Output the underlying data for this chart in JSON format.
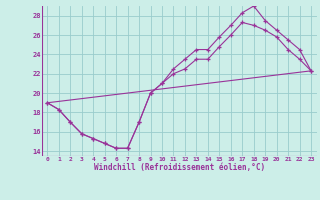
{
  "xlabel": "Windchill (Refroidissement éolien,°C)",
  "bg_color": "#cceee8",
  "grid_color": "#99cccc",
  "line_color": "#993399",
  "xlim_min": -0.5,
  "xlim_max": 23.5,
  "ylim_min": 13.5,
  "ylim_max": 29.0,
  "xticks": [
    0,
    1,
    2,
    3,
    4,
    5,
    6,
    7,
    8,
    9,
    10,
    11,
    12,
    13,
    14,
    15,
    16,
    17,
    18,
    19,
    20,
    21,
    22,
    23
  ],
  "yticks": [
    14,
    16,
    18,
    20,
    22,
    24,
    26,
    28
  ],
  "line1_x": [
    0,
    1,
    2,
    3,
    4,
    5,
    6,
    7,
    8,
    9,
    10,
    11,
    12,
    13,
    14,
    15,
    16,
    17,
    18,
    19,
    20,
    21,
    22,
    23
  ],
  "line1_y": [
    19.0,
    18.3,
    17.0,
    15.8,
    15.3,
    14.8,
    14.3,
    14.3,
    17.0,
    20.0,
    21.0,
    22.5,
    23.5,
    24.5,
    24.5,
    25.8,
    27.0,
    28.3,
    29.0,
    27.5,
    26.5,
    25.5,
    24.5,
    22.3
  ],
  "line2_x": [
    0,
    1,
    2,
    3,
    4,
    5,
    6,
    7,
    8,
    9,
    10,
    11,
    12,
    13,
    14,
    15,
    16,
    17,
    18,
    19,
    20,
    21,
    22,
    23
  ],
  "line2_y": [
    19.0,
    18.3,
    17.0,
    15.8,
    15.3,
    14.8,
    14.3,
    14.3,
    17.0,
    20.0,
    21.0,
    22.0,
    22.5,
    23.5,
    23.5,
    24.8,
    26.0,
    27.3,
    27.0,
    26.5,
    25.8,
    24.5,
    23.5,
    22.3
  ],
  "line3_x": [
    0,
    23
  ],
  "line3_y": [
    19.0,
    22.3
  ]
}
